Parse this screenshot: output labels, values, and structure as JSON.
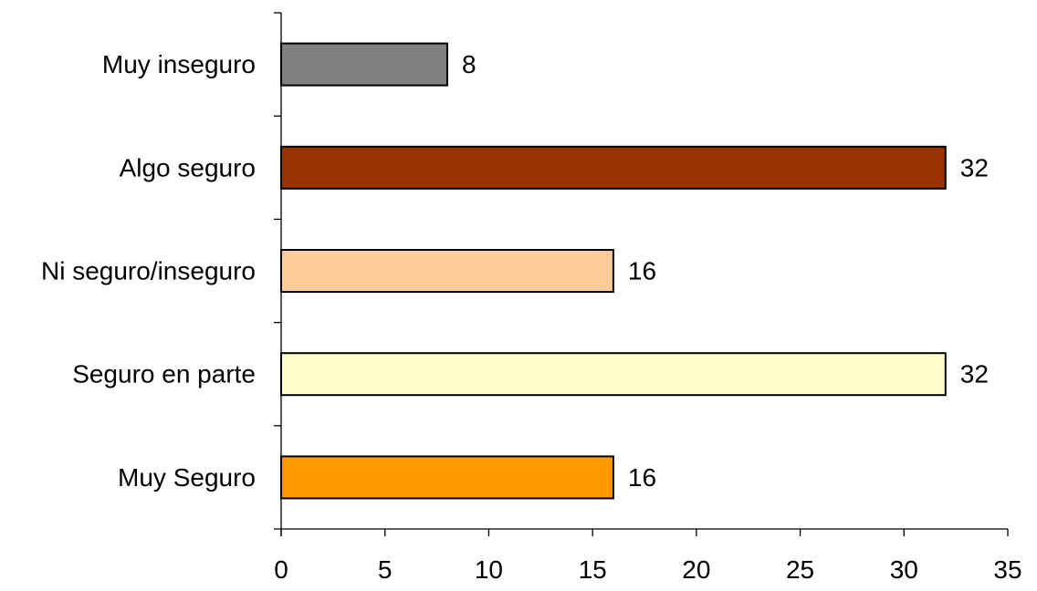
{
  "chart_data": {
    "type": "bar",
    "orientation": "horizontal",
    "categories": [
      "Muy inseguro",
      "Algo seguro",
      "Ni seguro/inseguro",
      "Seguro en parte",
      "Muy Seguro"
    ],
    "values": [
      8,
      32,
      16,
      32,
      16
    ],
    "colors": [
      "#808080",
      "#993300",
      "#FFCC99",
      "#FFFFCC",
      "#FF9900"
    ],
    "data_labels": [
      "8",
      "32",
      "16",
      "32",
      "16"
    ],
    "xlim": [
      0,
      35
    ],
    "x_ticks": [
      0,
      5,
      10,
      15,
      20,
      25,
      30,
      35
    ],
    "x_tick_labels": [
      "0",
      "5",
      "10",
      "15",
      "20",
      "25",
      "30",
      "35"
    ],
    "title": "",
    "xlabel": "",
    "ylabel": "",
    "grid": false,
    "legend": "none"
  }
}
